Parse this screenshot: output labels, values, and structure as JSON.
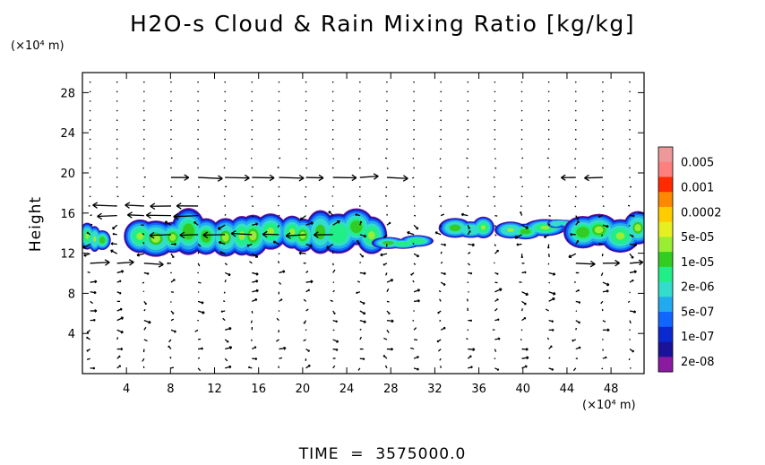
{
  "chart_data": {
    "type": "heatmap",
    "title": "H2O-s Cloud & Rain Mixing Ratio [kg/kg]",
    "xlabel": "",
    "ylabel": "Height",
    "x_unit": "(×10⁴ m)",
    "y_unit": "(×10⁴ m)",
    "xlim": [
      0,
      51
    ],
    "ylim": [
      0,
      30
    ],
    "x_ticks": [
      4,
      8,
      12,
      16,
      20,
      24,
      28,
      32,
      36,
      40,
      44,
      48
    ],
    "y_ticks": [
      4,
      8,
      12,
      16,
      20,
      24,
      28
    ],
    "colorbar": {
      "labels": [
        "0.005",
        "0.001",
        "0.0002",
        "5e-05",
        "1e-05",
        "2e-06",
        "5e-07",
        "1e-07",
        "2e-08"
      ],
      "colors": [
        "#ee9999",
        "#ff7f7f",
        "#ff2a00",
        "#ff8800",
        "#ffcc00",
        "#e6f020",
        "#99ee33",
        "#33cc22",
        "#22ee88",
        "#33ddcc",
        "#22aaee",
        "#1166ff",
        "#0a2ad0",
        "#1a1299",
        "#8a1aa0"
      ]
    },
    "cloud_regions": [
      {
        "x": [
          0,
          2
        ],
        "y": [
          12.3,
          14.8
        ],
        "max_level": "5e-05"
      },
      {
        "x": [
          4.5,
          27
        ],
        "y": [
          11.8,
          16.2
        ],
        "max_level": "5e-05"
      },
      {
        "x": [
          27,
          31
        ],
        "y": [
          12.4,
          13.8
        ],
        "max_level": "1e-05"
      },
      {
        "x": [
          33.5,
          37
        ],
        "y": [
          13.5,
          15.6
        ],
        "max_level": "5e-05"
      },
      {
        "x": [
          38,
          42.5
        ],
        "y": [
          13.3,
          15.6
        ],
        "max_level": "5e-05"
      },
      {
        "x": [
          42.5,
          44.5
        ],
        "y": [
          14.5,
          15.4
        ],
        "max_level": "2e-06"
      },
      {
        "x": [
          44.5,
          51
        ],
        "y": [
          12.2,
          16.3
        ],
        "max_level": "5e-05"
      }
    ],
    "wind_vectors": "u/w vector field overlay",
    "time": "3575000.0"
  },
  "labels": {
    "time_prefix": "TIME  =  ",
    "time_value": "3575000.0"
  }
}
